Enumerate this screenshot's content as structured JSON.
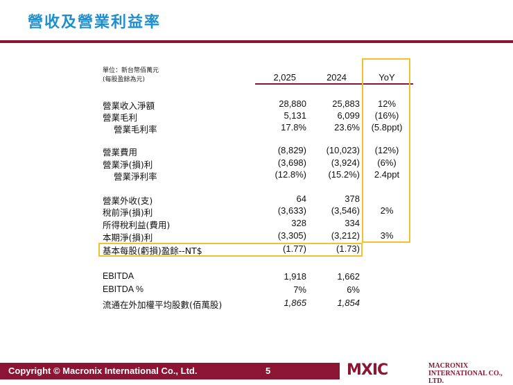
{
  "title": "營收及營業利益率",
  "unit_note": [
    "單位：新台幣佰萬元",
    "(每股盈餘為元)"
  ],
  "columns": [
    "2,025",
    "2024",
    "YoY"
  ],
  "rows": [
    {
      "label": "營業收入淨額",
      "v2025": "28,880",
      "v2024": "25,883",
      "yoy": "12%"
    },
    {
      "label": "營業毛利",
      "v2025": "5,131",
      "v2024": "6,099",
      "yoy": "(16%)"
    },
    {
      "label": "營業毛利率",
      "v2025": "17.8%",
      "v2024": "23.6%",
      "yoy": "(5.8ppt)"
    },
    {
      "label": "營業費用",
      "v2025": "(8,829)",
      "v2024": "(10,023)",
      "yoy": "(12%)"
    },
    {
      "label": "營業淨(損)利",
      "v2025": "(3,698)",
      "v2024": "(3,924)",
      "yoy": "(6%)"
    },
    {
      "label": "營業淨利率",
      "v2025": "(12.8%)",
      "v2024": "(15.2%)",
      "yoy": "2.4ppt"
    },
    {
      "label": "營業外收(支)",
      "v2025": "64",
      "v2024": "378",
      "yoy": ""
    },
    {
      "label": "稅前淨(損)利",
      "v2025": "(3,633)",
      "v2024": "(3,546)",
      "yoy": "2%"
    },
    {
      "label": "所得稅利益(費用)",
      "v2025": "328",
      "v2024": "334",
      "yoy": ""
    },
    {
      "label": "本期淨(損)利",
      "v2025": "(3,305)",
      "v2024": "(3,212)",
      "yoy": "3%"
    },
    {
      "label": "基本每股(虧損)盈餘--NT$",
      "v2025": "(1.77)",
      "v2024": "(1.73)",
      "yoy": ""
    },
    {
      "label": "EBITDA",
      "v2025": "1,918",
      "v2024": "1,662",
      "yoy": ""
    },
    {
      "label": "EBITDA %",
      "v2025": "7%",
      "v2024": "6%",
      "yoy": ""
    },
    {
      "label": "流通在外加權平均股數(佰萬股)",
      "v2025": "1,865",
      "v2024": "1,854",
      "yoy": ""
    }
  ],
  "footer": {
    "copyright": "Copyright © Macronix International Co., Ltd.",
    "page": "5",
    "logo_mark": "MXIC",
    "logo_text": [
      "MACRONIX",
      "INTERNATIONAL CO., LTD."
    ]
  },
  "colors": {
    "accent": "#8b1533",
    "title": "#1b8fd0",
    "highlight": "#f2c22e"
  }
}
